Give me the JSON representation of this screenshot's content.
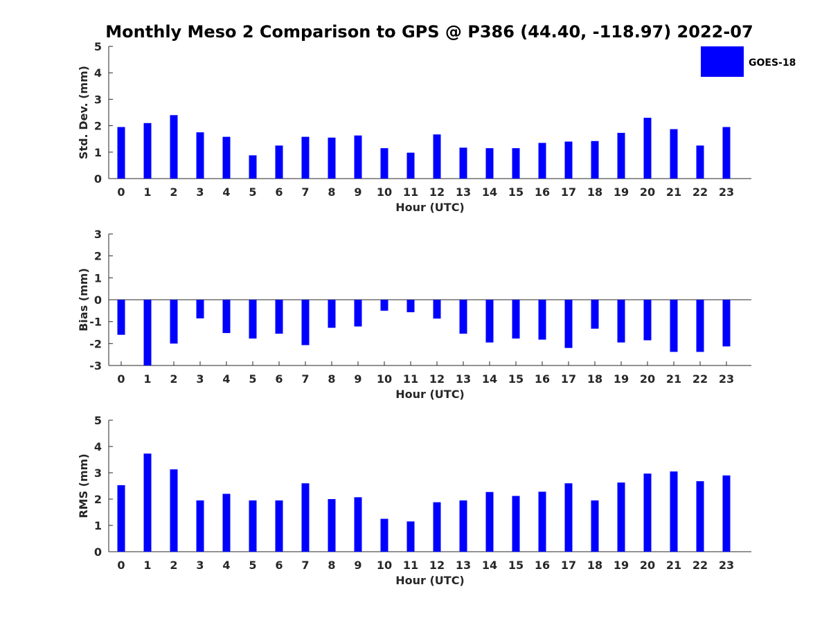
{
  "chart_data": {
    "type": "bar",
    "title": "Monthly Meso 2 Comparison to GPS @ P386 (44.40, -118.97) 2022-07",
    "legend": {
      "entries": [
        "GOES-18"
      ],
      "placement": "top-right"
    },
    "series_color": "#0000ff",
    "categories": [
      "0",
      "1",
      "2",
      "3",
      "4",
      "5",
      "6",
      "7",
      "8",
      "9",
      "10",
      "11",
      "12",
      "13",
      "14",
      "15",
      "16",
      "17",
      "18",
      "19",
      "20",
      "21",
      "22",
      "23"
    ],
    "panels": [
      {
        "name": "std-dev",
        "ylabel": "Std. Dev. (mm)",
        "xlabel": "Hour (UTC)",
        "ylim": [
          0,
          5
        ],
        "yticks": [
          0,
          1,
          2,
          3,
          4,
          5
        ],
        "zero_line": false,
        "series": [
          {
            "name": "GOES-18",
            "values": [
              1.95,
              2.1,
              2.4,
              1.75,
              1.58,
              0.88,
              1.25,
              1.58,
              1.55,
              1.63,
              1.15,
              0.98,
              1.67,
              1.17,
              1.15,
              1.15,
              1.35,
              1.4,
              1.42,
              1.73,
              2.3,
              1.87,
              1.25,
              1.95
            ]
          }
        ]
      },
      {
        "name": "bias",
        "ylabel": "Bias (mm)",
        "xlabel": "Hour (UTC)",
        "ylim": [
          -3,
          3
        ],
        "yticks": [
          -3,
          -2,
          -1,
          0,
          1,
          2,
          3
        ],
        "zero_line": true,
        "series": [
          {
            "name": "GOES-18",
            "values": [
              -1.6,
              -3.0,
              -2.0,
              -0.85,
              -1.52,
              -1.77,
              -1.55,
              -2.07,
              -1.28,
              -1.22,
              -0.5,
              -0.57,
              -0.86,
              -1.55,
              -1.95,
              -1.77,
              -1.82,
              -2.2,
              -1.32,
              -1.95,
              -1.85,
              -2.38,
              -2.38,
              -2.13
            ]
          }
        ]
      },
      {
        "name": "rms",
        "ylabel": "RMS (mm)",
        "xlabel": "Hour (UTC)",
        "ylim": [
          0,
          5
        ],
        "yticks": [
          0,
          1,
          2,
          3,
          4,
          5
        ],
        "zero_line": false,
        "series": [
          {
            "name": "GOES-18",
            "values": [
              2.53,
              3.73,
              3.13,
              1.95,
              2.2,
              1.95,
              1.95,
              2.6,
              2.0,
              2.07,
              1.25,
              1.15,
              1.88,
              1.95,
              2.27,
              2.12,
              2.28,
              2.6,
              1.95,
              2.63,
              2.97,
              3.05,
              2.68,
              2.9
            ]
          }
        ]
      }
    ]
  }
}
